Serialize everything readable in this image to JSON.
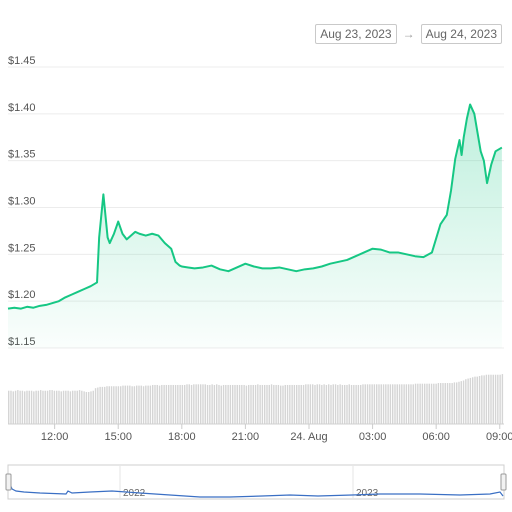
{
  "date_range": {
    "from": "Aug 23, 2023",
    "arrow": "→",
    "to": "Aug 24, 2023"
  },
  "colors": {
    "line": "#16c784",
    "fill_top": "#16c784",
    "volume": "#d5d5d5",
    "grid": "#ececec",
    "navigator_line": "#3a6fc4"
  },
  "navigator": {
    "labels": [
      "2022",
      "2023"
    ]
  },
  "chart_data": {
    "type": "line",
    "title": "",
    "xlabel": "",
    "ylabel": "",
    "ylim": [
      1.15,
      1.45
    ],
    "yticks": [
      1.45,
      1.4,
      1.35,
      1.3,
      1.25,
      1.2,
      1.15
    ],
    "ytick_labels": [
      "$1.45",
      "$1.40",
      "$1.35",
      "$1.30",
      "$1.25",
      "$1.20",
      "$1.15"
    ],
    "xlim": [
      9.8,
      33.2
    ],
    "xticks": [
      12,
      15,
      18,
      21,
      24,
      27,
      30,
      33
    ],
    "xtick_labels": [
      "12:00",
      "15:00",
      "18:00",
      "21:00",
      "24. Aug",
      "03:00",
      "06:00",
      "09:00"
    ],
    "grid": true,
    "series": [
      {
        "x": [
          9.8,
          10.1,
          10.4,
          10.7,
          11.0,
          11.3,
          11.6,
          11.9,
          12.2,
          12.5,
          12.8,
          13.1,
          13.4,
          13.7,
          14.0,
          14.1,
          14.3,
          14.5,
          14.6,
          14.8,
          15.0,
          15.2,
          15.4,
          15.6,
          15.8,
          16.0,
          16.3,
          16.6,
          16.9,
          17.2,
          17.5,
          17.7,
          17.9,
          18.0,
          18.3,
          18.6,
          19.0,
          19.4,
          19.8,
          20.2,
          20.6,
          21.0,
          21.4,
          21.8,
          22.2,
          22.6,
          23.0,
          23.4,
          23.8,
          24.2,
          24.6,
          25.0,
          25.4,
          25.8,
          26.2,
          26.6,
          27.0,
          27.4,
          27.8,
          28.2,
          28.6,
          29.0,
          29.4,
          29.8,
          30.2,
          30.5,
          30.7,
          30.9,
          31.1,
          31.2,
          31.3,
          31.45,
          31.6,
          31.8,
          31.95,
          32.1,
          32.25,
          32.4,
          32.6,
          32.8,
          33.1
        ],
        "y": [
          1.192,
          1.193,
          1.192,
          1.194,
          1.193,
          1.195,
          1.196,
          1.198,
          1.2,
          1.204,
          1.207,
          1.21,
          1.213,
          1.216,
          1.22,
          1.268,
          1.314,
          1.268,
          1.262,
          1.272,
          1.285,
          1.272,
          1.266,
          1.27,
          1.274,
          1.272,
          1.27,
          1.272,
          1.27,
          1.262,
          1.256,
          1.242,
          1.238,
          1.237,
          1.236,
          1.235,
          1.236,
          1.238,
          1.234,
          1.232,
          1.236,
          1.24,
          1.237,
          1.235,
          1.235,
          1.236,
          1.234,
          1.232,
          1.234,
          1.235,
          1.237,
          1.24,
          1.242,
          1.244,
          1.248,
          1.252,
          1.256,
          1.255,
          1.252,
          1.252,
          1.25,
          1.248,
          1.247,
          1.252,
          1.282,
          1.292,
          1.318,
          1.352,
          1.372,
          1.356,
          1.375,
          1.395,
          1.41,
          1.4,
          1.38,
          1.36,
          1.35,
          1.326,
          1.346,
          1.36,
          1.364
        ]
      }
    ],
    "volume": {
      "type": "bar",
      "x_start": 9.8,
      "x_end": 33.2,
      "values": [
        52,
        52,
        51,
        52,
        53,
        52,
        52,
        51,
        52,
        52,
        52,
        51,
        52,
        52,
        53,
        52,
        52,
        52,
        53,
        53,
        52,
        52,
        52,
        51,
        52,
        52,
        52,
        51,
        52,
        52,
        52,
        53,
        52,
        51,
        50,
        50,
        51,
        52,
        56,
        57,
        58,
        58,
        58,
        59,
        59,
        59,
        59,
        59,
        59,
        59,
        60,
        60,
        60,
        60,
        59,
        59,
        60,
        60,
        60,
        59,
        60,
        60,
        60,
        61,
        61,
        61,
        60,
        61,
        61,
        61,
        61,
        61,
        61,
        61,
        61,
        61,
        61,
        61,
        62,
        62,
        61,
        62,
        62,
        62,
        62,
        62,
        62,
        61,
        61,
        62,
        61,
        62,
        61,
        60,
        61,
        61,
        61,
        61,
        61,
        61,
        61,
        61,
        61,
        61,
        60,
        61,
        61,
        61,
        61,
        62,
        61,
        61,
        61,
        61,
        61,
        62,
        61,
        61,
        61,
        60,
        60,
        61,
        61,
        61,
        61,
        61,
        61,
        61,
        61,
        61,
        62,
        62,
        62,
        62,
        61,
        62,
        62,
        61,
        62,
        61,
        62,
        61,
        62,
        62,
        61,
        62,
        61,
        61,
        61,
        62,
        61,
        61,
        61,
        61,
        61,
        62,
        62,
        62,
        62,
        62,
        62,
        62,
        62,
        62,
        62,
        62,
        62,
        62,
        62,
        62,
        62,
        62,
        62,
        62,
        62,
        62,
        62,
        62,
        63,
        63,
        63,
        63,
        63,
        63,
        63,
        63,
        63,
        63,
        64,
        64,
        64,
        64,
        64,
        64,
        64,
        65,
        65,
        66,
        67,
        68,
        70,
        71,
        72,
        73,
        74,
        74,
        75,
        76,
        76,
        77,
        77,
        77,
        77,
        77,
        77,
        77,
        78
      ]
    }
  }
}
